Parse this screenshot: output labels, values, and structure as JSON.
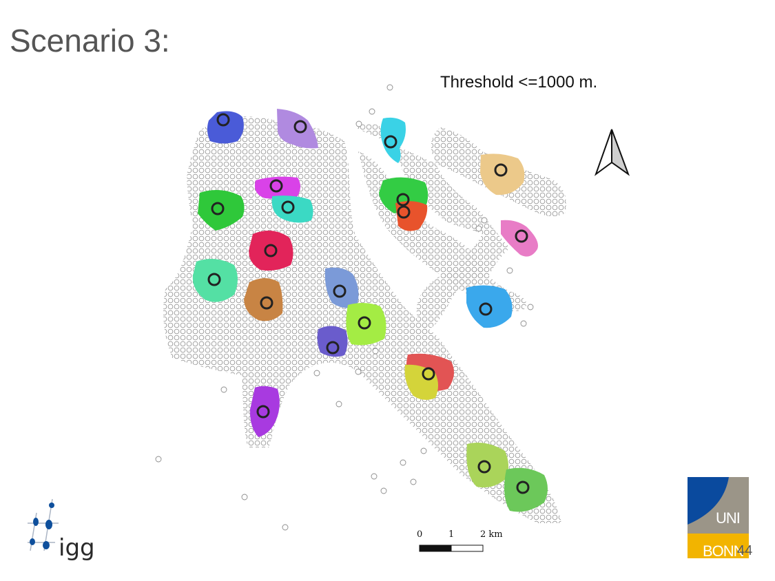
{
  "slide": {
    "title": "Scenario 3:",
    "page_number": "44"
  },
  "map": {
    "threshold_label": "Threshold <=1000 m.",
    "scale_bar": {
      "labels": [
        "0",
        "1",
        "2 km"
      ]
    },
    "north_arrow_icon": "north-arrow-icon",
    "clusters": [
      {
        "name": "cluster-blue-nw",
        "color": "#4a5bd8"
      },
      {
        "name": "cluster-lavender-n",
        "color": "#b08ae0"
      },
      {
        "name": "cluster-cyan-n",
        "color": "#3ad2e6"
      },
      {
        "name": "cluster-sand-ne",
        "color": "#ecc98a"
      },
      {
        "name": "cluster-magenta",
        "color": "#d942e8"
      },
      {
        "name": "cluster-turquoise",
        "color": "#3bd9c4"
      },
      {
        "name": "cluster-green-w",
        "color": "#2fc83a"
      },
      {
        "name": "cluster-green-center",
        "color": "#33cc44"
      },
      {
        "name": "cluster-orange-red",
        "color": "#e8532c"
      },
      {
        "name": "cluster-pink-e",
        "color": "#e87cc6"
      },
      {
        "name": "cluster-crimson",
        "color": "#e2245a"
      },
      {
        "name": "cluster-mint",
        "color": "#54e0a4"
      },
      {
        "name": "cluster-brown",
        "color": "#c88444"
      },
      {
        "name": "cluster-steelblue",
        "color": "#7b9ad8"
      },
      {
        "name": "cluster-lime",
        "color": "#a4ec44"
      },
      {
        "name": "cluster-skyblue-e",
        "color": "#3aa8ec"
      },
      {
        "name": "cluster-indigo",
        "color": "#6a5ccc"
      },
      {
        "name": "cluster-red-se",
        "color": "#e25454"
      },
      {
        "name": "cluster-yellow-se",
        "color": "#d4d43a"
      },
      {
        "name": "cluster-purple-s",
        "color": "#a83ae0"
      },
      {
        "name": "cluster-olive-s",
        "color": "#aad45a"
      },
      {
        "name": "cluster-green-s",
        "color": "#6cc85a"
      }
    ]
  },
  "logos": {
    "igg_text": "igg",
    "uni_text": "UNI",
    "bonn_text": "BONN",
    "colors": {
      "uni_blue": "#0a4a9e",
      "uni_gray": "#9b9588",
      "uni_yellow": "#f2b400"
    }
  }
}
